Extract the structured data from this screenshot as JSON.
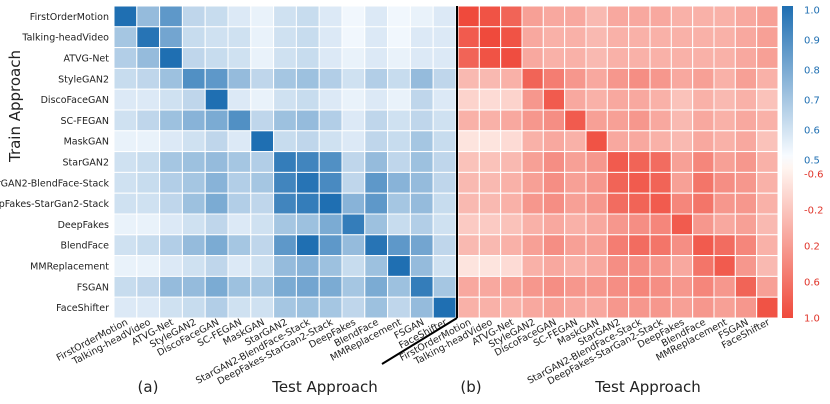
{
  "chart_data": [
    {
      "type": "heatmap",
      "panel": "(a)",
      "ylabel": "Train Approach",
      "xlabel": "Test Approach",
      "categories": [
        "FirstOrderMotion",
        "Talking-headVideo",
        "ATVG-Net",
        "StyleGAN2",
        "DiscoFaceGAN",
        "SC-FEGAN",
        "MaskGAN",
        "StarGAN2",
        "StarGAN2-BlendFace-Stack",
        "DeepFakes-StarGan2-Stack",
        "DeepFakes",
        "BlendFace",
        "MMReplacement",
        "FSGAN",
        "FaceShifter"
      ],
      "values": [
        [
          1.0,
          0.72,
          0.85,
          0.62,
          0.6,
          0.55,
          0.52,
          0.58,
          0.6,
          0.55,
          0.5,
          0.55,
          0.5,
          0.52,
          0.55
        ],
        [
          0.68,
          0.98,
          0.8,
          0.6,
          0.58,
          0.58,
          0.52,
          0.58,
          0.6,
          0.55,
          0.5,
          0.55,
          0.5,
          0.55,
          0.55
        ],
        [
          0.65,
          0.72,
          1.0,
          0.62,
          0.6,
          0.58,
          0.52,
          0.58,
          0.6,
          0.55,
          0.52,
          0.55,
          0.52,
          0.55,
          0.55
        ],
        [
          0.6,
          0.62,
          0.7,
          0.88,
          0.85,
          0.72,
          0.62,
          0.68,
          0.7,
          0.65,
          0.58,
          0.65,
          0.6,
          0.72,
          0.62
        ],
        [
          0.55,
          0.55,
          0.58,
          0.62,
          1.0,
          0.55,
          0.52,
          0.58,
          0.6,
          0.55,
          0.52,
          0.55,
          0.52,
          0.62,
          0.55
        ],
        [
          0.58,
          0.62,
          0.7,
          0.75,
          0.78,
          0.88,
          0.62,
          0.7,
          0.72,
          0.65,
          0.55,
          0.62,
          0.58,
          0.62,
          0.58
        ],
        [
          0.52,
          0.52,
          0.55,
          0.58,
          0.62,
          0.55,
          1.0,
          0.6,
          0.62,
          0.58,
          0.55,
          0.62,
          0.6,
          0.68,
          0.6
        ],
        [
          0.58,
          0.6,
          0.68,
          0.7,
          0.72,
          0.68,
          0.65,
          0.95,
          0.92,
          0.88,
          0.62,
          0.72,
          0.62,
          0.7,
          0.62
        ],
        [
          0.58,
          0.6,
          0.65,
          0.68,
          0.75,
          0.65,
          0.68,
          0.92,
          0.98,
          0.9,
          0.62,
          0.85,
          0.75,
          0.72,
          0.62
        ],
        [
          0.58,
          0.58,
          0.62,
          0.7,
          0.78,
          0.65,
          0.62,
          0.92,
          0.95,
          1.0,
          0.75,
          0.85,
          0.68,
          0.72,
          0.6
        ],
        [
          0.52,
          0.52,
          0.55,
          0.58,
          0.62,
          0.55,
          0.58,
          0.68,
          0.7,
          0.78,
          0.95,
          0.7,
          0.6,
          0.65,
          0.58
        ],
        [
          0.58,
          0.6,
          0.65,
          0.72,
          0.78,
          0.68,
          0.62,
          0.85,
          1.0,
          0.85,
          0.72,
          0.98,
          0.85,
          0.8,
          0.62
        ],
        [
          0.52,
          0.52,
          0.55,
          0.58,
          0.62,
          0.55,
          0.58,
          0.72,
          0.75,
          0.7,
          0.6,
          0.7,
          1.0,
          0.72,
          0.58
        ],
        [
          0.6,
          0.62,
          0.72,
          0.72,
          0.78,
          0.7,
          0.68,
          0.78,
          0.8,
          0.78,
          0.68,
          0.78,
          0.7,
          0.95,
          0.68
        ],
        [
          0.55,
          0.55,
          0.58,
          0.6,
          0.65,
          0.58,
          0.58,
          0.68,
          0.7,
          0.68,
          0.62,
          0.7,
          0.62,
          0.72,
          1.0
        ]
      ],
      "colorbar": {
        "min": 0.5,
        "max": 1.0,
        "ticks": [
          "1.0",
          "0.9",
          "0.8",
          "0.7",
          "0.6",
          "0.5"
        ]
      },
      "cmap_color": "#1f6fb2"
    },
    {
      "type": "heatmap",
      "panel": "(b)",
      "xlabel": "Test Approach",
      "categories": [
        "FirstOrderMotion",
        "Talking-headVideo",
        "ATVG-Net",
        "StyleGAN2",
        "DiscoFaceGAN",
        "SC-FEGAN",
        "MaskGAN",
        "StarGAN2",
        "StarGAN2-BlendFace-Stack",
        "DeepFakes-StarGan2-Stack",
        "DeepFakes",
        "BlendFace",
        "MMReplacement",
        "FSGAN",
        "FaceShifter"
      ],
      "values": [
        [
          1.0,
          0.95,
          0.85,
          0.5,
          0.45,
          0.45,
          0.35,
          0.45,
          0.45,
          0.45,
          0.4,
          0.4,
          0.4,
          0.45,
          0.5
        ],
        [
          0.9,
          1.0,
          0.95,
          0.45,
          0.4,
          0.4,
          0.35,
          0.4,
          0.4,
          0.4,
          0.4,
          0.4,
          0.4,
          0.45,
          0.5
        ],
        [
          0.85,
          0.95,
          0.98,
          0.45,
          0.4,
          0.4,
          0.35,
          0.4,
          0.4,
          0.4,
          0.4,
          0.4,
          0.4,
          0.45,
          0.5
        ],
        [
          0.35,
          0.35,
          0.4,
          0.85,
          0.7,
          0.55,
          0.45,
          0.55,
          0.6,
          0.55,
          0.45,
          0.5,
          0.4,
          0.5,
          0.4
        ],
        [
          0.2,
          0.15,
          0.2,
          0.55,
          0.9,
          0.45,
          0.4,
          0.45,
          0.45,
          0.4,
          0.3,
          0.4,
          0.35,
          0.4,
          0.3
        ],
        [
          0.4,
          0.4,
          0.45,
          0.55,
          0.6,
          0.9,
          0.5,
          0.5,
          0.55,
          0.45,
          0.35,
          0.45,
          0.4,
          0.45,
          0.4
        ],
        [
          0.1,
          0.1,
          0.15,
          0.4,
          0.45,
          0.4,
          0.95,
          0.45,
          0.45,
          0.4,
          0.35,
          0.45,
          0.4,
          0.45,
          0.3
        ],
        [
          0.3,
          0.3,
          0.35,
          0.5,
          0.6,
          0.5,
          0.55,
          0.9,
          0.85,
          0.8,
          0.5,
          0.65,
          0.5,
          0.55,
          0.4
        ],
        [
          0.35,
          0.35,
          0.4,
          0.5,
          0.6,
          0.5,
          0.55,
          0.85,
          0.9,
          0.85,
          0.5,
          0.75,
          0.6,
          0.55,
          0.4
        ],
        [
          0.35,
          0.35,
          0.4,
          0.55,
          0.6,
          0.5,
          0.55,
          0.8,
          0.85,
          0.9,
          0.65,
          0.75,
          0.55,
          0.55,
          0.4
        ],
        [
          0.25,
          0.25,
          0.3,
          0.4,
          0.45,
          0.4,
          0.45,
          0.55,
          0.6,
          0.65,
          0.9,
          0.55,
          0.45,
          0.5,
          0.35
        ],
        [
          0.35,
          0.35,
          0.4,
          0.5,
          0.6,
          0.5,
          0.5,
          0.7,
          0.8,
          0.75,
          0.6,
          0.9,
          0.8,
          0.65,
          0.4
        ],
        [
          0.1,
          0.1,
          0.15,
          0.4,
          0.45,
          0.4,
          0.45,
          0.6,
          0.6,
          0.55,
          0.45,
          0.75,
          0.9,
          0.55,
          0.35
        ],
        [
          0.45,
          0.45,
          0.5,
          0.55,
          0.6,
          0.55,
          0.55,
          0.6,
          0.65,
          0.6,
          0.55,
          0.65,
          0.55,
          0.85,
          0.5
        ],
        [
          0.4,
          0.4,
          0.4,
          0.45,
          0.5,
          0.45,
          0.45,
          0.55,
          0.55,
          0.55,
          0.5,
          0.55,
          0.5,
          0.55,
          0.95
        ]
      ],
      "colorbar": {
        "min": -1.0,
        "max": 1.0,
        "ticks": [
          "-0.6",
          "-0.2",
          "0.2",
          "0.6",
          "1.0"
        ]
      },
      "cmap_color": "#ef4a3c"
    }
  ]
}
